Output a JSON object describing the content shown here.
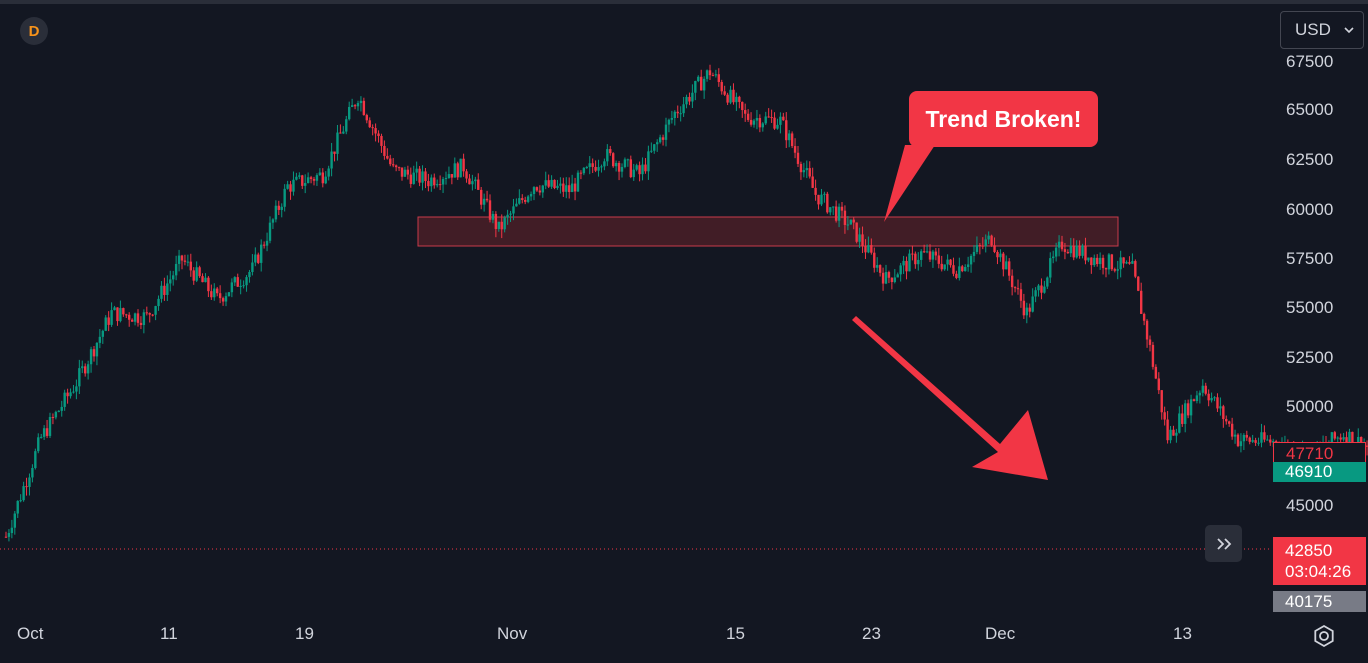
{
  "logo": {
    "letter": "D",
    "icon": "bitcoin-d-logo-icon"
  },
  "currency_select": {
    "value": "USD",
    "icon": "chevron-down-icon"
  },
  "callout": {
    "text": "Trend Broken!"
  },
  "colors": {
    "up": "#089981",
    "down": "#f23645",
    "zone": "#4a1e27",
    "background": "#131722"
  },
  "chart_data": {
    "type": "candlestick",
    "title": "",
    "y_ticks": [
      "67500",
      "65000",
      "62500",
      "60000",
      "57500",
      "55000",
      "52500",
      "50000",
      "45000"
    ],
    "x_ticks": [
      "Oct",
      "11",
      "19",
      "Nov",
      "15",
      "23",
      "Dec",
      "13"
    ],
    "price_tags": [
      {
        "label": "47710",
        "style": "outline-red"
      },
      {
        "label": "46910",
        "style": "filled-green"
      },
      {
        "label": "42850",
        "sub": "03:04:26",
        "style": "filled-red"
      },
      {
        "label": "40175",
        "style": "filled-gray"
      }
    ],
    "horizontal_line": 42850,
    "resistance_zone": {
      "low": 58300,
      "high": 59700
    },
    "annotation_text": "Trend Broken!",
    "approx_close_path": [
      [
        "Oct 1",
        43500
      ],
      [
        "Oct 3",
        48500
      ],
      [
        "Oct 5",
        51300
      ],
      [
        "Oct 7",
        54800
      ],
      [
        "Oct 9",
        54600
      ],
      [
        "Oct 11",
        57500
      ],
      [
        "Oct 13",
        55500
      ],
      [
        "Oct 15",
        57000
      ],
      [
        "Oct 17",
        61200
      ],
      [
        "Oct 19",
        61800
      ],
      [
        "Oct 21",
        65800
      ],
      [
        "Oct 23",
        62000
      ],
      [
        "Oct 25",
        61500
      ],
      [
        "Oct 27",
        62200
      ],
      [
        "Oct 29",
        59000
      ],
      [
        "Oct 31",
        61300
      ],
      [
        "Nov 2",
        61000
      ],
      [
        "Nov 4",
        62800
      ],
      [
        "Nov 6",
        61800
      ],
      [
        "Nov 8",
        64900
      ],
      [
        "Nov 10",
        67000
      ],
      [
        "Nov 12",
        64700
      ],
      [
        "Nov 14",
        64500
      ],
      [
        "Nov 16",
        60800
      ],
      [
        "Nov 18",
        59200
      ],
      [
        "Nov 20",
        56500
      ],
      [
        "Nov 22",
        57800
      ],
      [
        "Nov 24",
        57000
      ],
      [
        "Nov 26",
        58600
      ],
      [
        "Nov 28",
        54800
      ],
      [
        "Nov 30",
        58300
      ],
      [
        "Dec 2",
        57500
      ],
      [
        "Dec 4",
        57000
      ],
      [
        "Dec 5",
        53000
      ],
      [
        "Dec 6",
        48500
      ],
      [
        "Dec 8",
        51200
      ],
      [
        "Dec 10",
        48400
      ],
      [
        "Dec 12",
        48300
      ],
      [
        "Dec 14",
        47600
      ],
      [
        "Dec 16",
        48700
      ],
      [
        "Dec 18",
        47710
      ]
    ]
  }
}
